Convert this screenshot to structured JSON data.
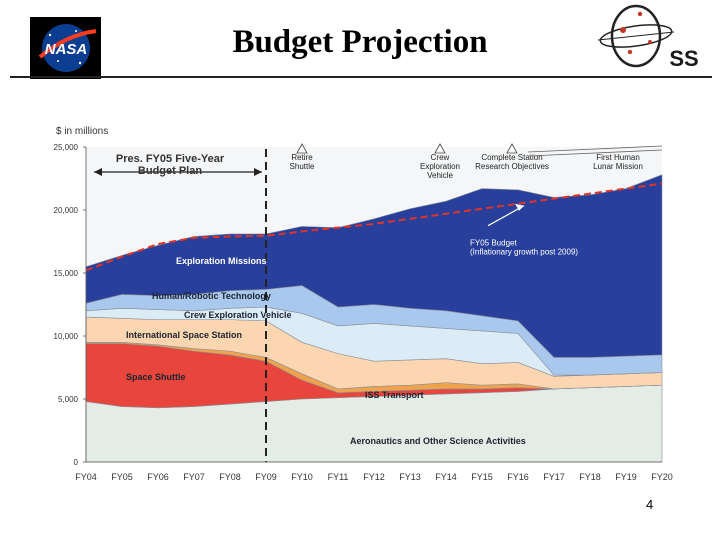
{
  "slide": {
    "title": "Budget Projection",
    "page_number": "4",
    "nasa_logo_text": "NASA",
    "ss_logo_text": "SS"
  },
  "chart_data": {
    "type": "area",
    "title": "",
    "ylabel": "$ in millions",
    "ylim": [
      0,
      25000
    ],
    "yticks": [
      0,
      5000,
      10000,
      15000,
      20000,
      25000
    ],
    "ytick_labels": [
      "0",
      "5,000",
      "10,000",
      "15,000",
      "20,000",
      "25,000"
    ],
    "categories": [
      "FY04",
      "FY05",
      "FY06",
      "FY07",
      "FY08",
      "FY09",
      "FY10",
      "FY11",
      "FY12",
      "FY13",
      "FY14",
      "FY15",
      "FY16",
      "FY17",
      "FY18",
      "FY19",
      "FY20"
    ],
    "series_label_note": "series values are cumulative upper boundaries (stacked)",
    "series": [
      {
        "name": "Aeronautics and Other Science Activities",
        "color": "#e4ece6",
        "base": [
          0,
          0,
          0,
          0,
          0,
          0,
          0,
          0,
          0,
          0,
          0,
          0,
          0,
          0,
          0,
          0,
          0
        ],
        "values": [
          4800,
          4400,
          4300,
          4400,
          4600,
          4800,
          5000,
          5100,
          5200,
          5300,
          5400,
          5500,
          5600,
          5800,
          5900,
          6000,
          6100
        ]
      },
      {
        "name": "Space Shuttle",
        "color": "#e8453c",
        "values": [
          9400,
          9400,
          9200,
          8800,
          8500,
          8000,
          6500,
          5500,
          5600,
          5700,
          5800,
          5800,
          5900,
          5800,
          5900,
          6000,
          6100
        ]
      },
      {
        "name": "ISS Transport",
        "color": "#f0a24c",
        "values": [
          9500,
          9500,
          9300,
          9000,
          8800,
          8300,
          7000,
          5800,
          6000,
          6100,
          6300,
          6100,
          6200,
          5800,
          5900,
          6000,
          6100
        ]
      },
      {
        "name": "International Space Station",
        "color": "#fbd6b0",
        "values": [
          11500,
          11400,
          11300,
          11300,
          11300,
          11200,
          9500,
          8600,
          8000,
          8100,
          8200,
          7800,
          7900,
          6800,
          6900,
          7000,
          7100
        ]
      },
      {
        "name": "Crew Exploration Vehicle",
        "color": "#dcecf6",
        "values": [
          12000,
          12200,
          12100,
          12000,
          12200,
          12300,
          11800,
          10800,
          11000,
          10800,
          10600,
          10400,
          10200,
          6900,
          6900,
          7000,
          7100
        ]
      },
      {
        "name": "Human/Robotic Technology",
        "color": "#a9c8ee",
        "values": [
          12600,
          13300,
          13200,
          13300,
          13600,
          13700,
          14000,
          12300,
          12500,
          12200,
          12000,
          11600,
          11200,
          8300,
          8300,
          8400,
          8500
        ]
      },
      {
        "name": "Exploration Missions",
        "color": "#283f9c",
        "values": [
          15500,
          16400,
          17200,
          17900,
          18100,
          18100,
          18700,
          18600,
          19300,
          20100,
          20700,
          21700,
          21600,
          21000,
          21200,
          21700,
          22800
        ]
      }
    ],
    "fy05_budget_line": {
      "label": "FY05 Budget\n(Inflationary growth post 2009)",
      "color": "#e0342b",
      "values": [
        15200,
        16300,
        17300,
        17800,
        17900,
        17950,
        18300,
        18600,
        18900,
        19300,
        19700,
        20100,
        20500,
        20900,
        21300,
        21700,
        22100
      ]
    },
    "series_labels": [
      {
        "text": "Aeronautics and Other Science Activities",
        "color": "#1b2430"
      },
      {
        "text": "Space Shuttle",
        "color": "#1b2430"
      },
      {
        "text": "ISS Transport",
        "color": "#1b2430"
      },
      {
        "text": "International Space Station",
        "color": "#1b2430"
      },
      {
        "text": "Crew Exploration Vehicle",
        "color": "#1b2430"
      },
      {
        "text": "Human/Robotic Technology",
        "color": "#1b2430"
      },
      {
        "text": "Exploration Missions",
        "color": "#ffffff"
      }
    ],
    "annotations": [
      {
        "text": "Pres. FY05 Five-Year\nBudget Plan"
      },
      {
        "text": "Retire\nShuttle"
      },
      {
        "text": "Crew\nExploration\nVehicle"
      },
      {
        "text": "Complete Station\nResearch Objectives"
      },
      {
        "text": "First Human\nLunar Mission"
      }
    ],
    "five_year_plan_end": "FY09",
    "grid": false
  }
}
